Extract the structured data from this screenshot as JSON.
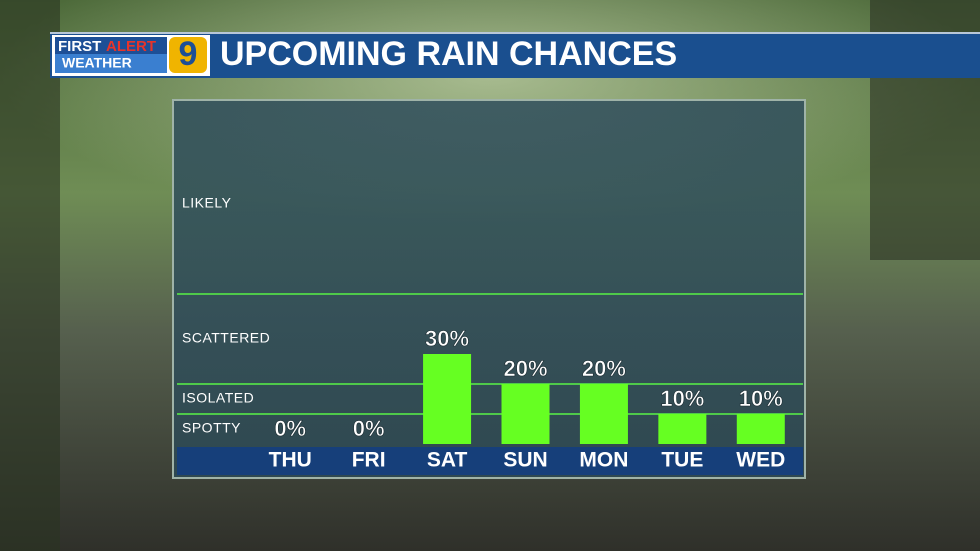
{
  "chart_data": {
    "type": "bar",
    "title": "UPCOMING RAIN CHANCES",
    "logo": {
      "first": "FIRST",
      "alert": "ALERT",
      "weather": "WEATHER",
      "channel": "9"
    },
    "categories": [
      "THU",
      "FRI",
      "SAT",
      "SUN",
      "MON",
      "TUE",
      "WED"
    ],
    "values": [
      0,
      0,
      30,
      20,
      20,
      10,
      10
    ],
    "value_labels": [
      "0%",
      "0%",
      "30%",
      "20%",
      "20%",
      "10%",
      "10%"
    ],
    "color": "#66ff22",
    "ylim": [
      0,
      114
    ],
    "yticks": [
      {
        "value": 5,
        "label": "SPOTTY"
      },
      {
        "value": 15,
        "label": "ISOLATED"
      },
      {
        "value": 35,
        "label": "SCATTERED"
      },
      {
        "value": 80,
        "label": "LIKELY"
      }
    ],
    "thresholds": [
      10,
      20,
      50
    ]
  }
}
